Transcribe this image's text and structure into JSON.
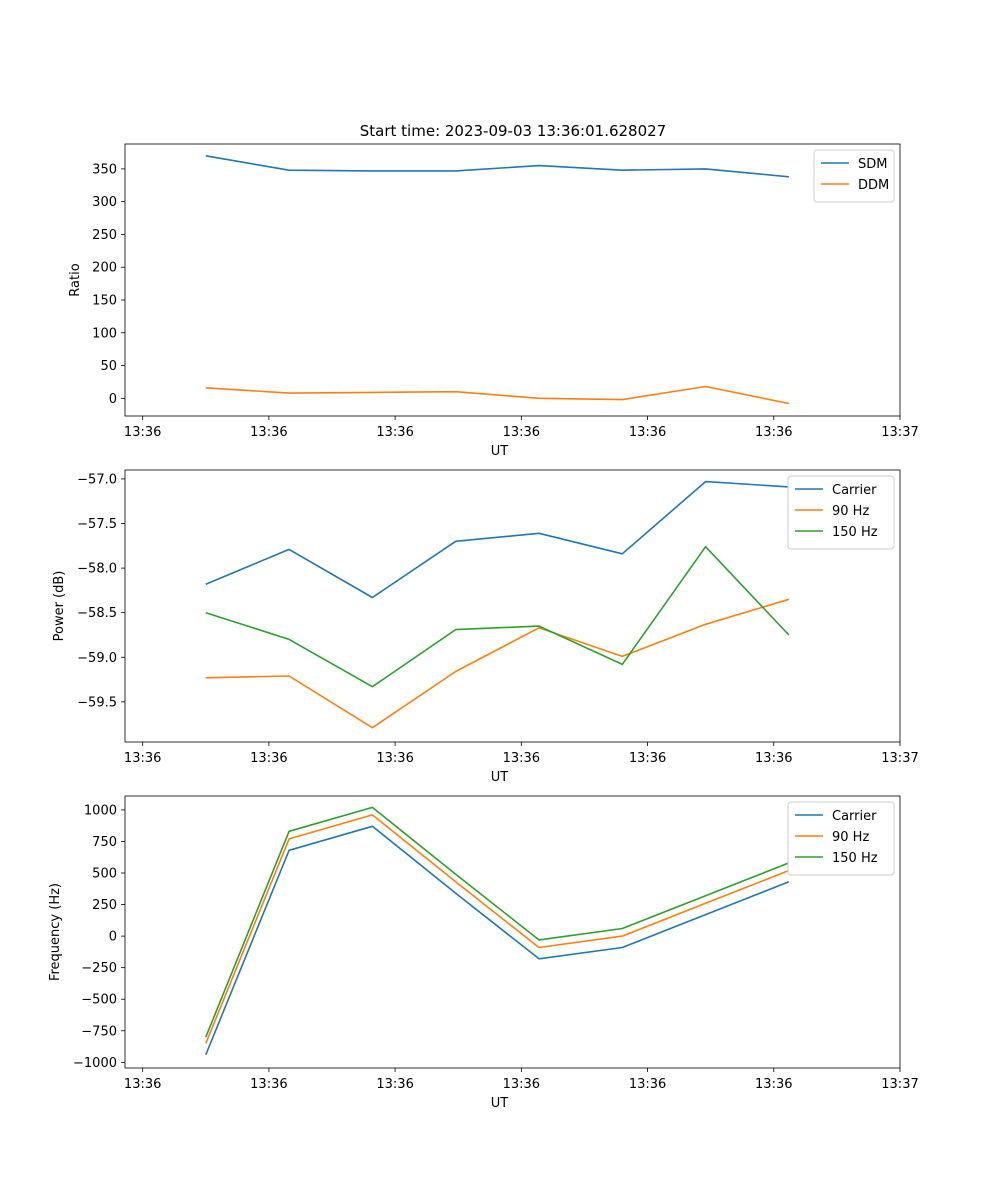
{
  "title": "Start time: 2023-09-03 13:36:01.628027",
  "x_axis": {
    "label": "UT",
    "ticks": [
      {
        "t": 0.0,
        "label": "13:36"
      },
      {
        "t": 0.5,
        "label": "13:36"
      },
      {
        "t": 1.0,
        "label": "13:36"
      },
      {
        "t": 1.5,
        "label": "13:36"
      },
      {
        "t": 2.0,
        "label": "13:36"
      },
      {
        "t": 2.5,
        "label": "13:36"
      },
      {
        "t": 3.0,
        "label": "13:37"
      }
    ]
  },
  "colors": {
    "blue": "#1f77b4",
    "orange": "#ff7f0e",
    "green": "#2ca02c"
  },
  "chart_data": [
    {
      "type": "line",
      "ylabel": "Ratio",
      "xlim": [
        -0.07,
        3.0
      ],
      "ylim": [
        -27,
        388
      ],
      "yticks": [
        {
          "v": 0,
          "label": "0"
        },
        {
          "v": 50,
          "label": "50"
        },
        {
          "v": 100,
          "label": "100"
        },
        {
          "v": 150,
          "label": "150"
        },
        {
          "v": 200,
          "label": "200"
        },
        {
          "v": 250,
          "label": "250"
        },
        {
          "v": 300,
          "label": "300"
        },
        {
          "v": 350,
          "label": "350"
        }
      ],
      "legend_position": "top-right",
      "x": [
        0.25,
        0.58,
        0.91,
        1.24,
        1.57,
        1.9,
        2.23,
        2.56
      ],
      "series": [
        {
          "name": "SDM",
          "color": "#1f77b4",
          "values": [
            370,
            348,
            347,
            347,
            355,
            348,
            350,
            338
          ]
        },
        {
          "name": "DDM",
          "color": "#ff7f0e",
          "values": [
            16,
            8,
            9,
            10,
            0,
            -2,
            18,
            -8
          ]
        }
      ]
    },
    {
      "type": "line",
      "ylabel": "Power (dB)",
      "xlim": [
        -0.07,
        3.0
      ],
      "ylim": [
        -59.95,
        -56.9
      ],
      "yticks": [
        {
          "v": -59.5,
          "label": "−59.5"
        },
        {
          "v": -59.0,
          "label": "−59.0"
        },
        {
          "v": -58.5,
          "label": "−58.5"
        },
        {
          "v": -58.0,
          "label": "−58.0"
        },
        {
          "v": -57.5,
          "label": "−57.5"
        },
        {
          "v": -57.0,
          "label": "−57.0"
        }
      ],
      "legend_position": "top-right",
      "x": [
        0.25,
        0.58,
        0.91,
        1.24,
        1.57,
        1.9,
        2.23,
        2.56
      ],
      "series": [
        {
          "name": "Carrier",
          "color": "#1f77b4",
          "values": [
            -58.18,
            -57.79,
            -58.33,
            -57.7,
            -57.61,
            -57.84,
            -57.03,
            -57.09
          ]
        },
        {
          "name": "90 Hz",
          "color": "#ff7f0e",
          "values": [
            -59.23,
            -59.21,
            -59.79,
            -59.16,
            -58.67,
            -58.99,
            -58.63,
            -58.35
          ]
        },
        {
          "name": "150 Hz",
          "color": "#2ca02c",
          "values": [
            -58.5,
            -58.8,
            -59.33,
            -58.69,
            -58.65,
            -59.08,
            -57.76,
            -58.75
          ]
        }
      ]
    },
    {
      "type": "line",
      "ylabel": "Frequency (Hz)",
      "xlim": [
        -0.07,
        3.0
      ],
      "ylim": [
        -1045,
        1110
      ],
      "yticks": [
        {
          "v": -1000,
          "label": "−1000"
        },
        {
          "v": -750,
          "label": "−750"
        },
        {
          "v": -500,
          "label": "−500"
        },
        {
          "v": -250,
          "label": "−250"
        },
        {
          "v": 0,
          "label": "0"
        },
        {
          "v": 250,
          "label": "250"
        },
        {
          "v": 500,
          "label": "500"
        },
        {
          "v": 750,
          "label": "750"
        },
        {
          "v": 1000,
          "label": "1000"
        }
      ],
      "legend_position": "top-right",
      "x": [
        0.25,
        0.58,
        0.91,
        1.24,
        1.57,
        1.9,
        2.23,
        2.56
      ],
      "series": [
        {
          "name": "Carrier",
          "color": "#1f77b4",
          "values": [
            -940,
            680,
            870,
            340,
            -180,
            -90,
            170,
            430
          ]
        },
        {
          "name": "90 Hz",
          "color": "#ff7f0e",
          "values": [
            -850,
            770,
            960,
            430,
            -90,
            0,
            260,
            520
          ]
        },
        {
          "name": "150 Hz",
          "color": "#2ca02c",
          "values": [
            -800,
            830,
            1020,
            490,
            -30,
            60,
            320,
            580
          ]
        }
      ]
    }
  ]
}
